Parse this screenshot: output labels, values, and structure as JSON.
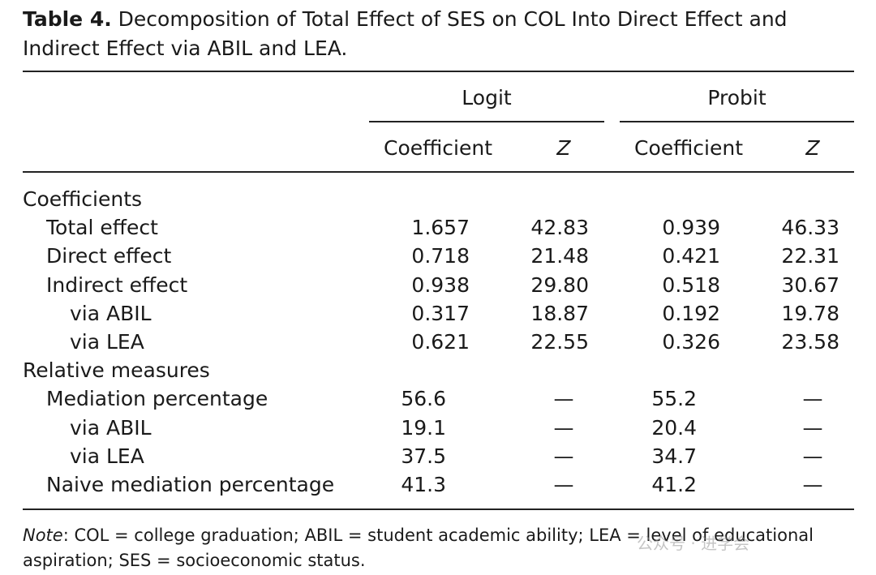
{
  "caption": {
    "label": "Table 4.",
    "text": " Decomposition of Total Effect of SES on COL Into Direct Effect and Indirect Effect via ABIL and LEA."
  },
  "header": {
    "logit": "Logit",
    "probit": "Probit",
    "coef": "Coefficient",
    "z": "Z"
  },
  "rows": [
    {
      "label": "Coefficients",
      "indent": 0,
      "lc": "",
      "lz": "",
      "pc": "",
      "pz": ""
    },
    {
      "label": "Total effect",
      "indent": 1,
      "lc": "1.657",
      "lz": "42.83",
      "pc": "0.939",
      "pz": "46.33"
    },
    {
      "label": "Direct effect",
      "indent": 1,
      "lc": "0.718",
      "lz": "21.48",
      "pc": "0.421",
      "pz": "22.31"
    },
    {
      "label": "Indirect effect",
      "indent": 1,
      "lc": "0.938",
      "lz": "29.80",
      "pc": "0.518",
      "pz": "30.67"
    },
    {
      "label": "via ABIL",
      "indent": 2,
      "lc": "0.317",
      "lz": "18.87",
      "pc": "0.192",
      "pz": "19.78"
    },
    {
      "label": "via LEA",
      "indent": 2,
      "lc": "0.621",
      "lz": "22.55",
      "pc": "0.326",
      "pz": "23.58"
    },
    {
      "label": "Relative measures",
      "indent": 0,
      "lc": "",
      "lz": "",
      "pc": "",
      "pz": ""
    },
    {
      "label": "Mediation percentage",
      "indent": 1,
      "lc": "56.6",
      "lz": "—",
      "pc": "55.2",
      "pz": "—"
    },
    {
      "label": "via ABIL",
      "indent": 2,
      "lc": "19.1",
      "lz": "—",
      "pc": "20.4",
      "pz": "—"
    },
    {
      "label": "via LEA",
      "indent": 2,
      "lc": "37.5",
      "lz": "—",
      "pc": "34.7",
      "pz": "—"
    },
    {
      "label": "Naive mediation percentage",
      "indent": 1,
      "lc": "41.3",
      "lz": "—",
      "pc": "41.2",
      "pz": "—"
    }
  ],
  "note": {
    "label": "Note",
    "text": ": COL = college graduation; ABIL = student academic ability; LEA = level of educational aspiration; SES = socioeconomic status."
  },
  "watermark": "公众号 · 进学会"
}
